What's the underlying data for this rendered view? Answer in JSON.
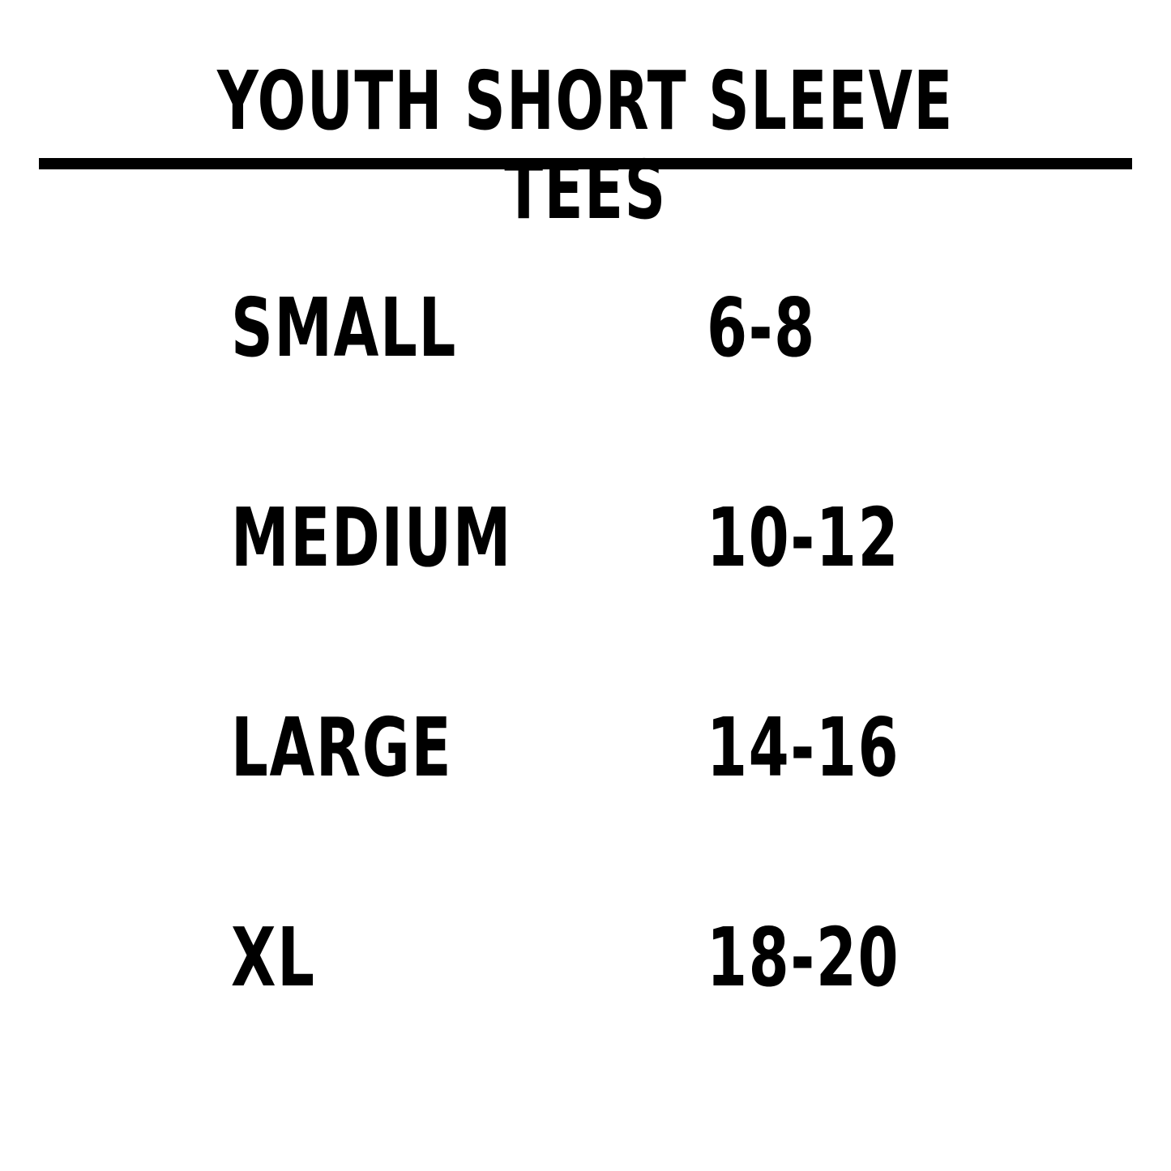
{
  "header": {
    "title": "YOUTH SHORT SLEEVE TEES"
  },
  "table": {
    "rows": [
      [
        "SMALL",
        "6-8"
      ],
      [
        "MEDIUM",
        "10-12"
      ],
      [
        "LARGE",
        "14-16"
      ],
      [
        "XL",
        "18-20"
      ]
    ]
  }
}
